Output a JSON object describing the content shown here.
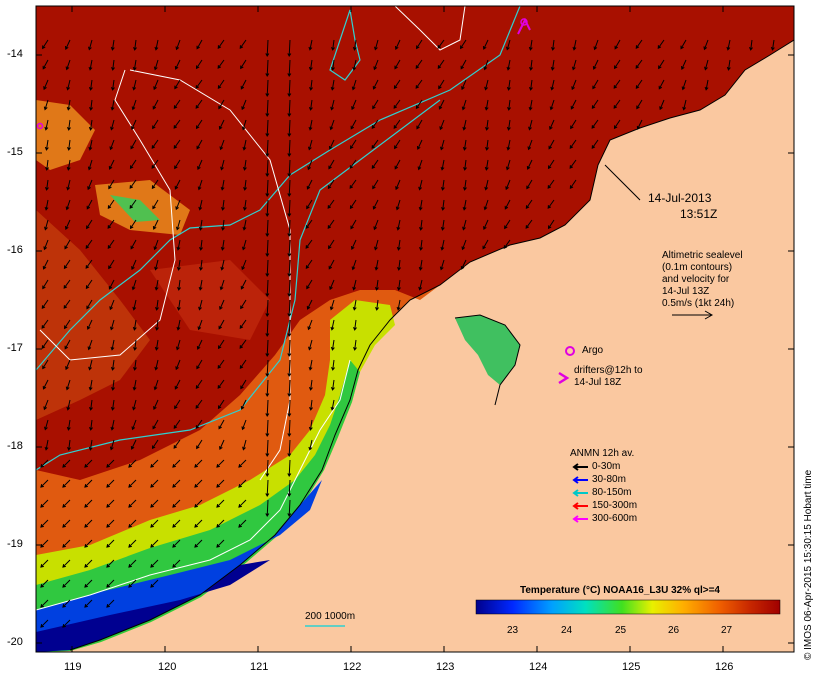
{
  "map": {
    "lon_ticks": [
      "119",
      "120",
      "121",
      "122",
      "123",
      "124",
      "125",
      "126"
    ],
    "lat_ticks": [
      "-14",
      "-15",
      "-16",
      "-17",
      "-18",
      "-19",
      "-20"
    ],
    "timestamp": [
      "14-Jul-2013",
      "13:51Z"
    ],
    "altimetry_legend": [
      "Altimetric sealevel",
      "(0.1m contours)",
      "and velocity for",
      "14-Jul 13Z",
      "0.5m/s (1kt 24h)"
    ],
    "argo_label": "Argo",
    "drifters_label": [
      "drifters@12h to",
      "14-Jul 18Z"
    ],
    "anmn_title": "ANMN 12h av.",
    "anmn_items": [
      {
        "label": "0-30m",
        "color": "#000000"
      },
      {
        "label": "30-80m",
        "color": "#0000ff"
      },
      {
        "label": "80-150m",
        "color": "#00c8c8"
      },
      {
        "label": "150-300m",
        "color": "#ff0000"
      },
      {
        "label": "300-600m",
        "color": "#ff00ff"
      }
    ],
    "isobath_label": "200  1000m",
    "colorbar_title": "Temperature (°C) NOAA16_L3U 32% ql>=4",
    "colorbar_ticks": [
      "23",
      "24",
      "25",
      "26",
      "27"
    ],
    "credit": "© IMOS 06-Apr-2015 15:30:15 Hobart time",
    "colors": {
      "land": "#fac8a0",
      "warm_sea": "#a81000",
      "isobath_200": "#30d0d0",
      "isobath_1000": "#ffffff",
      "argo": "#e000e0"
    }
  }
}
